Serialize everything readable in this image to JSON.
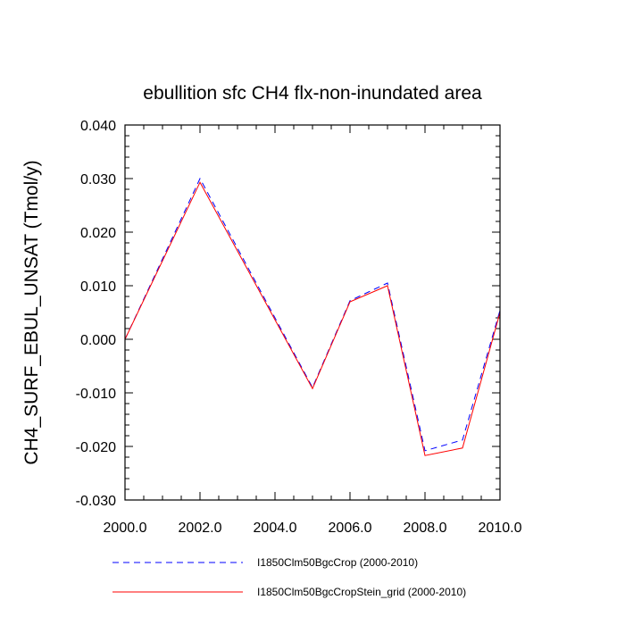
{
  "chart_data": {
    "type": "line",
    "title": "ebullition sfc CH4 flx-non-inundated area",
    "xlabel": "",
    "ylabel": "CH4_SURF_EBUL_UNSAT  (Tmol/y)",
    "xlim": [
      2000,
      2010
    ],
    "ylim": [
      -0.03,
      0.04
    ],
    "xticks": [
      2000,
      2002,
      2004,
      2006,
      2008,
      2010
    ],
    "xtick_labels": [
      "2000.0",
      "2002.0",
      "2004.0",
      "2006.0",
      "2008.0",
      "2010.0"
    ],
    "yticks": [
      -0.03,
      -0.02,
      -0.01,
      0.0,
      0.01,
      0.02,
      0.03,
      0.04
    ],
    "ytick_labels": [
      "-0.030",
      "-0.020",
      "-0.010",
      "0.000",
      "0.010",
      "0.020",
      "0.030",
      "0.040"
    ],
    "grid": false,
    "legend_position": "bottom",
    "x": [
      2000,
      2002,
      2005,
      2006,
      2007,
      2008,
      2009,
      2010
    ],
    "series": [
      {
        "name": "I1850Clm50BgcCrop (2000-2010)",
        "color": "#0000ff",
        "dash": "dashed",
        "values": [
          0.0,
          0.03,
          -0.009,
          0.0072,
          0.0105,
          -0.0208,
          -0.0188,
          0.0054
        ]
      },
      {
        "name": "I1850Clm50BgcCropStein_grid (2000-2010)",
        "color": "#ff0000",
        "dash": "solid",
        "values": [
          0.0,
          0.0293,
          -0.0092,
          0.007,
          0.01,
          -0.0217,
          -0.0203,
          0.005
        ]
      }
    ]
  }
}
